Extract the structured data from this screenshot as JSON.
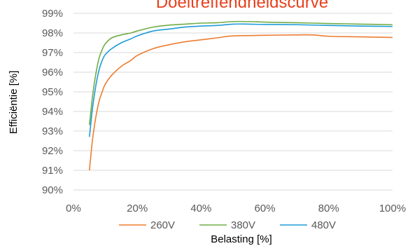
{
  "chart_data": {
    "type": "line",
    "title": "Doeltreffendheidscurve",
    "xlabel": "Belasting [%]",
    "ylabel": "Efficiëntie [%]",
    "xlim": [
      0,
      100
    ],
    "ylim": [
      90,
      99
    ],
    "x_ticks": [
      0,
      20,
      40,
      60,
      80,
      100
    ],
    "x_tick_labels": [
      "0%",
      "20%",
      "40%",
      "60%",
      "80%",
      "100%"
    ],
    "y_ticks": [
      90,
      91,
      92,
      93,
      94,
      95,
      96,
      97,
      98,
      99
    ],
    "y_tick_labels": [
      "90%",
      "91%",
      "92%",
      "93%",
      "94%",
      "95%",
      "96%",
      "97%",
      "98%",
      "99%"
    ],
    "grid": "horizontal",
    "legend_position": "bottom",
    "series": [
      {
        "name": "260V",
        "color": "#ed7d31",
        "points": [
          [
            5,
            91.0
          ],
          [
            6,
            92.6
          ],
          [
            7,
            93.7
          ],
          [
            8,
            94.5
          ],
          [
            9,
            95.0
          ],
          [
            10,
            95.4
          ],
          [
            12,
            95.85
          ],
          [
            15,
            96.3
          ],
          [
            18,
            96.6
          ],
          [
            20,
            96.85
          ],
          [
            25,
            97.2
          ],
          [
            30,
            97.4
          ],
          [
            35,
            97.55
          ],
          [
            40,
            97.65
          ],
          [
            45,
            97.75
          ],
          [
            50,
            97.85
          ],
          [
            60,
            97.88
          ],
          [
            70,
            97.9
          ],
          [
            75,
            97.9
          ],
          [
            80,
            97.83
          ],
          [
            90,
            97.8
          ],
          [
            100,
            97.77
          ]
        ]
      },
      {
        "name": "380V",
        "color": "#70ad47",
        "points": [
          [
            5,
            93.3
          ],
          [
            6,
            94.8
          ],
          [
            7,
            95.9
          ],
          [
            8,
            96.7
          ],
          [
            9,
            97.15
          ],
          [
            10,
            97.45
          ],
          [
            12,
            97.75
          ],
          [
            15,
            97.9
          ],
          [
            18,
            98.0
          ],
          [
            20,
            98.1
          ],
          [
            25,
            98.3
          ],
          [
            30,
            98.4
          ],
          [
            35,
            98.45
          ],
          [
            40,
            98.5
          ],
          [
            45,
            98.52
          ],
          [
            50,
            98.58
          ],
          [
            55,
            98.58
          ],
          [
            60,
            98.55
          ],
          [
            70,
            98.52
          ],
          [
            80,
            98.48
          ],
          [
            90,
            98.45
          ],
          [
            100,
            98.42
          ]
        ]
      },
      {
        "name": "480V",
        "color": "#1e9bd7",
        "points": [
          [
            5,
            92.7
          ],
          [
            6,
            94.2
          ],
          [
            7,
            95.3
          ],
          [
            8,
            96.1
          ],
          [
            9,
            96.6
          ],
          [
            10,
            96.9
          ],
          [
            12,
            97.2
          ],
          [
            15,
            97.5
          ],
          [
            18,
            97.7
          ],
          [
            20,
            97.85
          ],
          [
            25,
            98.1
          ],
          [
            30,
            98.2
          ],
          [
            35,
            98.3
          ],
          [
            40,
            98.35
          ],
          [
            45,
            98.38
          ],
          [
            50,
            98.45
          ],
          [
            55,
            98.45
          ],
          [
            60,
            98.43
          ],
          [
            70,
            98.42
          ],
          [
            80,
            98.38
          ],
          [
            90,
            98.35
          ],
          [
            100,
            98.33
          ]
        ]
      }
    ]
  }
}
